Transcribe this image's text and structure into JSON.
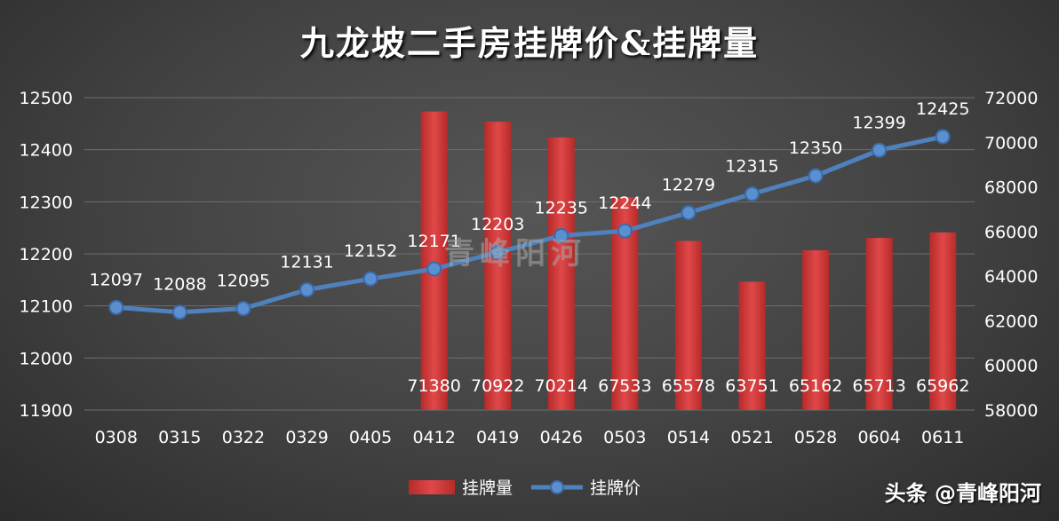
{
  "chart_data": {
    "type": "bar+line",
    "title": "九龙坡二手房挂牌价&挂牌量",
    "categories": [
      "0308",
      "0315",
      "0322",
      "0329",
      "0405",
      "0412",
      "0419",
      "0426",
      "0503",
      "0514",
      "0521",
      "0528",
      "0604",
      "0611"
    ],
    "series": [
      {
        "name": "挂牌量",
        "type": "bar",
        "axis": "right",
        "values": [
          null,
          null,
          null,
          null,
          null,
          71380,
          70922,
          70214,
          67533,
          65578,
          63751,
          65162,
          65713,
          65962
        ]
      },
      {
        "name": "挂牌价",
        "type": "line",
        "axis": "left",
        "values": [
          12097,
          12088,
          12095,
          12131,
          12152,
          12171,
          12203,
          12235,
          12244,
          12279,
          12315,
          12350,
          12399,
          12425
        ]
      }
    ],
    "y_left": {
      "min": 11900,
      "max": 12500,
      "ticks": [
        "11900",
        "12000",
        "12100",
        "12200",
        "12300",
        "12400",
        "12500"
      ]
    },
    "y_right": {
      "min": 58000,
      "max": 72000,
      "ticks": [
        "58000",
        "60000",
        "62000",
        "64000",
        "66000",
        "68000",
        "70000",
        "72000"
      ]
    },
    "grid": true,
    "legend": "bottom-center",
    "colors": {
      "bar": "#d13b3b",
      "line": "#4f81bd"
    }
  },
  "watermark": "青峰阳河",
  "brand": "头条 @青峰阳河"
}
